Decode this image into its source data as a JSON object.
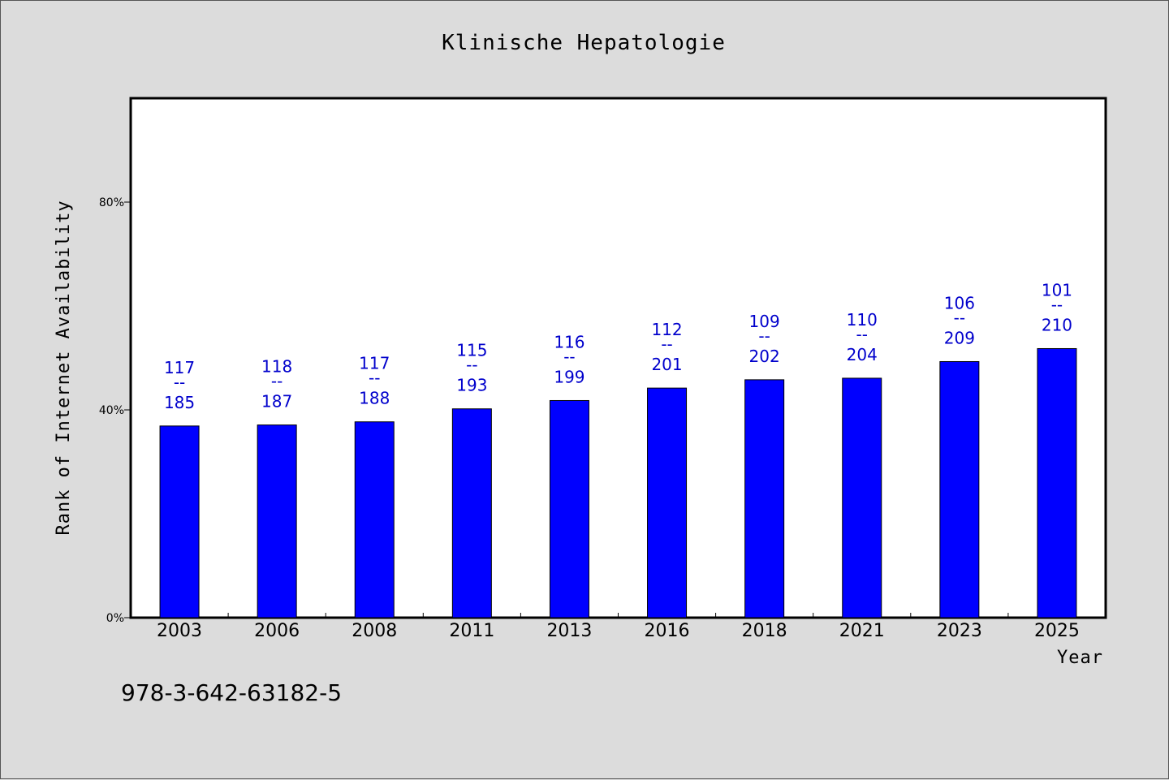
{
  "chart_data": {
    "type": "bar",
    "title": "Klinische Hepatologie",
    "xlabel": "Year",
    "ylabel": "Rank of Internet Availability",
    "categories": [
      "2003",
      "2006",
      "2008",
      "2011",
      "2013",
      "2016",
      "2018",
      "2021",
      "2023",
      "2025"
    ],
    "values": [
      36.9,
      37.1,
      37.7,
      40.2,
      41.8,
      44.2,
      45.8,
      46.1,
      49.3,
      51.8
    ],
    "bar_labels": [
      {
        "top": "117",
        "sep": "--",
        "bottom": "185"
      },
      {
        "top": "118",
        "sep": "--",
        "bottom": "187"
      },
      {
        "top": "117",
        "sep": "--",
        "bottom": "188"
      },
      {
        "top": "115",
        "sep": "--",
        "bottom": "193"
      },
      {
        "top": "116",
        "sep": "--",
        "bottom": "199"
      },
      {
        "top": "112",
        "sep": "--",
        "bottom": "201"
      },
      {
        "top": "109",
        "sep": "--",
        "bottom": "202"
      },
      {
        "top": "110",
        "sep": "--",
        "bottom": "204"
      },
      {
        "top": "106",
        "sep": "--",
        "bottom": "209"
      },
      {
        "top": "101",
        "sep": "--",
        "bottom": "210"
      }
    ],
    "ylim": [
      0,
      100
    ],
    "yticks": [
      0,
      40,
      80
    ],
    "ytick_labels": [
      "0%",
      "40%",
      "80%"
    ],
    "grid": false,
    "legend": "none",
    "colors": {
      "bar": "#0000ff",
      "label": "#0000cc",
      "background": "#dcdcdc",
      "plot": "#ffffff"
    }
  },
  "footer": {
    "isbn": "978-3-642-63182-5"
  }
}
